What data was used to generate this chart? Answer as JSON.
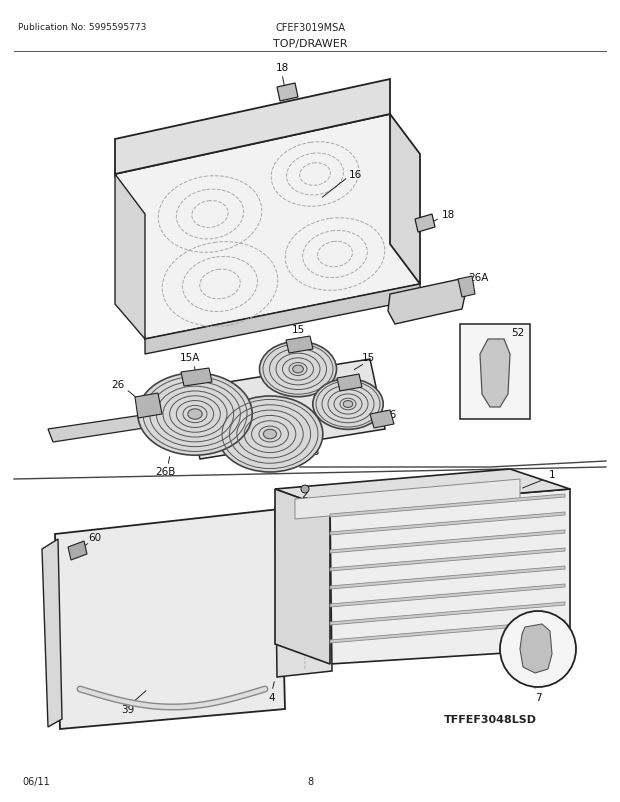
{
  "title": "TOP/DRAWER",
  "pub_no": "Publication No: 5995595773",
  "model": "CFEF3019MSA",
  "diagram_id": "TFFEF3048LSD",
  "date": "06/11",
  "page": "8",
  "bg_color": "#ffffff",
  "line_color": "#222222",
  "text_color": "#222222"
}
